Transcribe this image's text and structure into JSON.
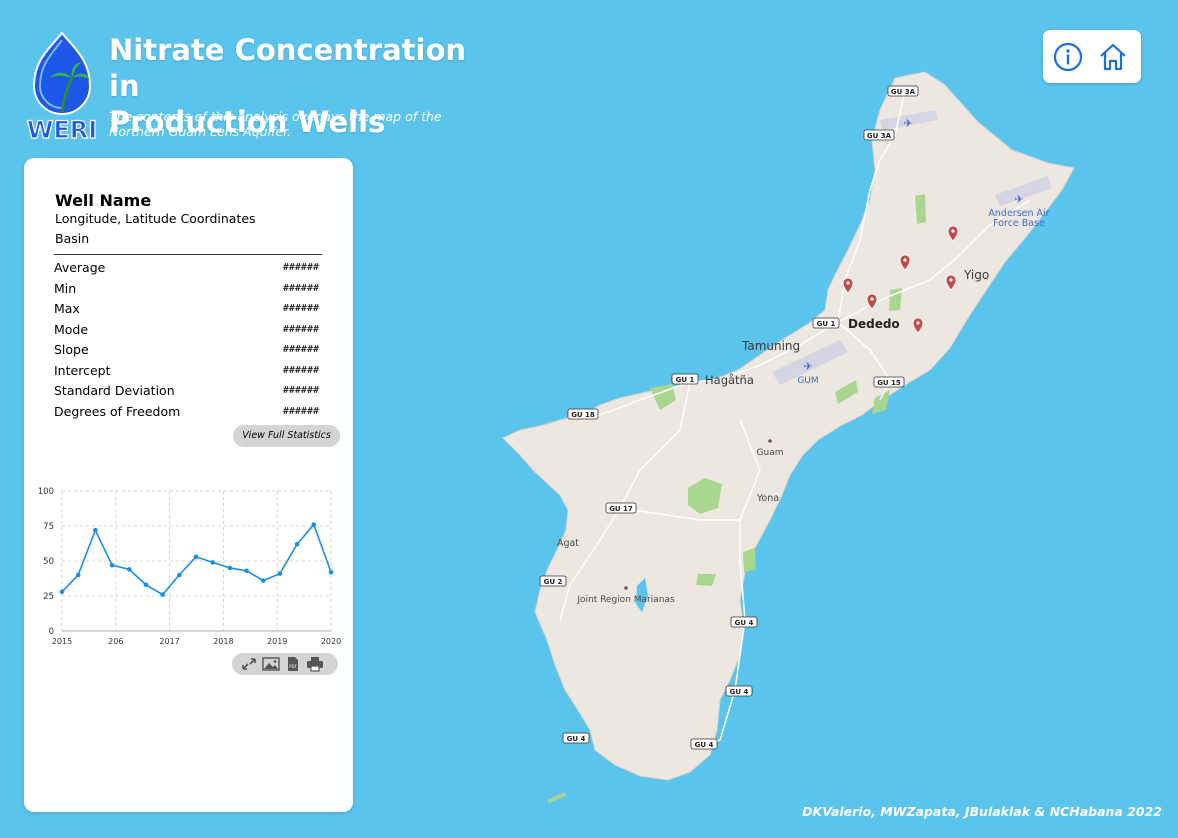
{
  "header": {
    "logo_text": "WERI",
    "title_line1": "Nitrate Concentration in",
    "title_line2": "Production Wells",
    "subtitle": "The contents of this analysis overlays the map of the Northern Guam Lens Aquifer."
  },
  "top_buttons": {
    "info_icon": "info-icon",
    "home_icon": "home-icon"
  },
  "panel": {
    "well_name": "Well Name",
    "coordinates": "Longitude, Latitude Coordinates",
    "basin": "Basin",
    "stats": [
      {
        "label": "Average",
        "value": "######"
      },
      {
        "label": "Min",
        "value": "######"
      },
      {
        "label": "Max",
        "value": "######"
      },
      {
        "label": "Mode",
        "value": "######"
      },
      {
        "label": "Slope",
        "value": "######"
      },
      {
        "label": "Intercept",
        "value": "######"
      },
      {
        "label": "Standard Deviation",
        "value": "######"
      },
      {
        "label": "Degrees of Freedom",
        "value": "######"
      }
    ],
    "view_button": "View Full Statistics",
    "tools": [
      "expand-icon",
      "image-icon",
      "pdf-icon",
      "print-icon"
    ]
  },
  "chart_data": {
    "type": "line",
    "title": "",
    "xlabel": "",
    "ylabel": "",
    "ylim": [
      0,
      100
    ],
    "xlim": [
      2015,
      2020
    ],
    "x_ticks": [
      "2015",
      "206",
      "2017",
      "2018",
      "2019",
      "2020"
    ],
    "y_ticks": [
      "0",
      "25",
      "50",
      "75",
      "100"
    ],
    "grid": true,
    "color": "#1a8fe3",
    "series": [
      {
        "x": [
          2015.0,
          2015.3,
          2015.62,
          2015.93,
          2016.25,
          2016.56,
          2016.87,
          2017.18,
          2017.49,
          2017.8,
          2018.12,
          2018.43,
          2018.74,
          2019.05,
          2019.37,
          2019.68,
          2020.0
        ],
        "values": [
          28,
          40,
          72,
          47,
          44,
          33,
          26,
          40,
          53,
          49,
          45,
          43,
          36,
          41,
          62,
          76,
          42
        ]
      }
    ]
  },
  "map": {
    "labels": {
      "andersen": "Andersen Air",
      "andersen2": "Force Base",
      "yigo": "Yigo",
      "dededo": "Dededo",
      "tamuning": "Tamuning",
      "hagatna": "Hagåtña",
      "gum": "GUM",
      "guam": "Guam",
      "yona": "Yona",
      "agat": "Agat",
      "jrm": "Joint Region Marianas"
    },
    "roads": {
      "gu3a_1": "GU 3A",
      "gu3a_2": "GU 3A",
      "gu1_1": "GU 1",
      "gu1_2": "GU 1",
      "gu15": "GU 15",
      "gu18": "GU 18",
      "gu17": "GU 17",
      "gu2": "GU 2",
      "gu4_1": "GU 4",
      "gu4_2": "GU 4",
      "gu4_3": "GU 4",
      "gu4_4": "GU 4"
    },
    "colors": {
      "water": "#5bc4ec",
      "land": "#ece7e1",
      "park": "#a9d68f",
      "marker": "#c44a4a"
    }
  },
  "credits": "DKValerio, MWZapata, JBulaklak & NCHabana 2022"
}
